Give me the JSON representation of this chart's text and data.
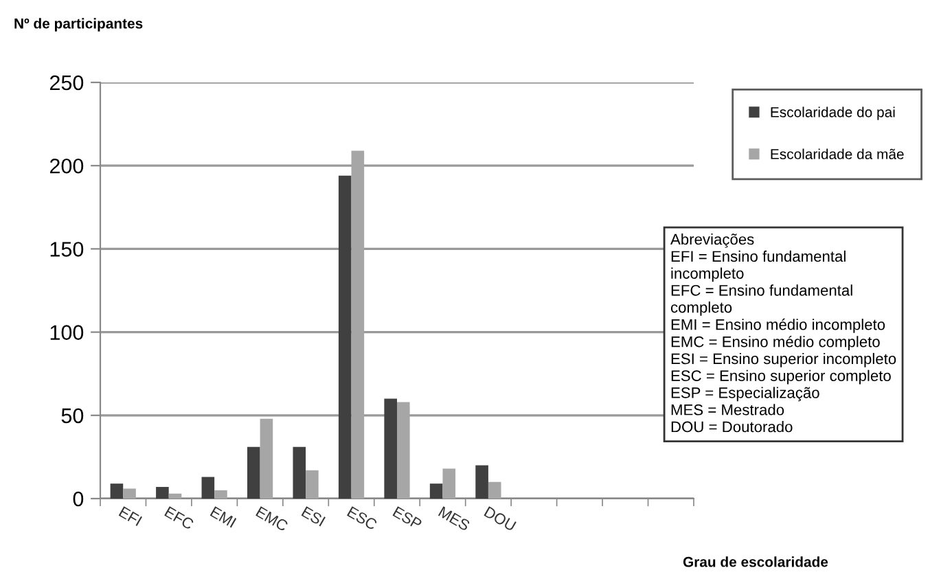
{
  "chart_data": {
    "type": "bar",
    "ylabel": "Nº de participantes",
    "xlabel": "Grau de escolaridade",
    "categories": [
      "EFI",
      "EFC",
      "EMI",
      "EMC",
      "ESI",
      "ESC",
      "ESP",
      "MES",
      "DOU",
      null,
      null,
      null,
      null
    ],
    "series": [
      {
        "name": "Escolaridade do pai",
        "color": "#404040",
        "values": [
          9,
          7,
          13,
          31,
          31,
          194,
          60,
          9,
          20,
          null,
          null,
          null,
          null
        ]
      },
      {
        "name": "Escolaridade da mãe",
        "color": "#a6a6a6",
        "values": [
          6,
          3,
          5,
          48,
          17,
          209,
          58,
          18,
          10,
          null,
          null,
          null,
          null
        ]
      }
    ],
    "ylim": [
      0,
      250
    ],
    "yticks": [
      0,
      50,
      100,
      150,
      200,
      250
    ],
    "grid": "y",
    "legend": "right",
    "annotations": [
      "Abreviações\nEFI = Ensino fundamental\nincompleto\nEFC = Ensino fundamental\ncompleto\nEMI = Ensino médio incompleto\nEMC = Ensino médio completo\nESI = Ensino superior incompleto\nESC = Ensino superior completo\nESP = Especialização\nMES = Mestrado\nDOU = Doutorado"
    ]
  }
}
